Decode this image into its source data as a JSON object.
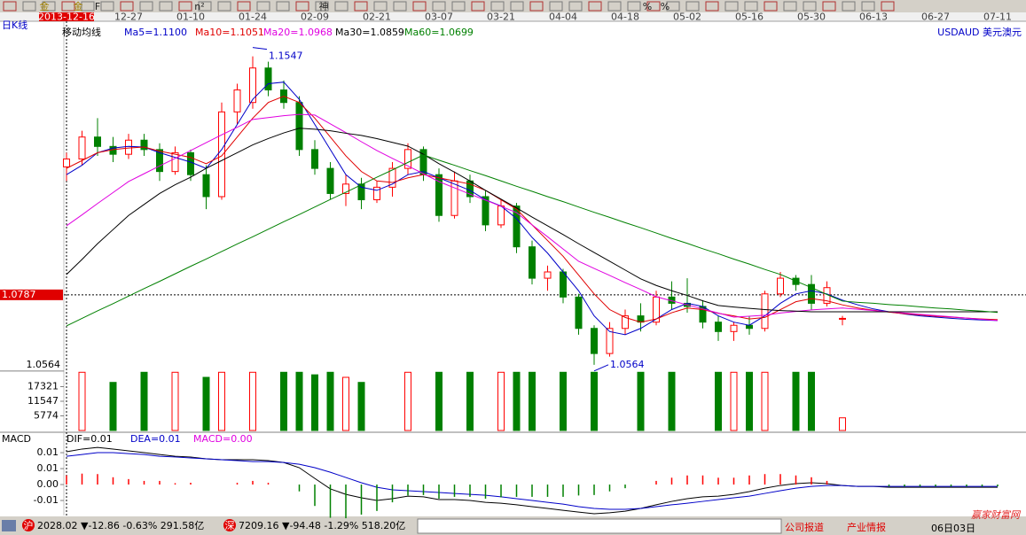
{
  "window": {
    "period": "日K线",
    "toolbar": [
      "金",
      "金",
      "F",
      "n²",
      "神",
      "%",
      "%"
    ]
  },
  "chart_data": [
    {
      "type": "candlestick",
      "title": "USDAUD 美元澳元",
      "legend_title": "移动均线",
      "categories": [
        "2013-12-16",
        null,
        null,
        null,
        "12-27",
        null,
        null,
        null,
        "01-10",
        null,
        null,
        null,
        "01-24",
        null,
        null,
        null,
        "02-09",
        null,
        null,
        null,
        "02-21",
        null,
        null,
        null,
        "03-07",
        null,
        null,
        null,
        "03-21",
        null,
        null,
        null,
        "04-04",
        null,
        null,
        null,
        "04-18",
        null,
        null,
        null,
        "05-02",
        null,
        null,
        null,
        "05-16",
        null,
        null,
        null,
        "05-30",
        null,
        null,
        null,
        "06-13",
        null,
        null,
        null,
        "06-27",
        null,
        null,
        null,
        "07-11"
      ],
      "open": [
        1.1195,
        1.122,
        1.129,
        1.126,
        1.1235,
        1.128,
        1.125,
        1.118,
        1.124,
        1.117,
        1.11,
        1.137,
        1.14,
        1.151,
        1.144,
        1.14,
        1.125,
        1.119,
        1.111,
        1.114,
        1.109,
        1.113,
        1.119,
        1.125,
        1.117,
        1.104,
        1.115,
        1.11,
        1.101,
        1.107,
        1.094,
        1.084,
        1.086,
        1.078,
        1.068,
        1.06,
        1.068,
        1.072,
        1.07,
        1.078,
        1.076,
        1.075,
        1.07,
        1.067,
        1.069,
        1.068,
        1.079,
        1.084,
        1.082,
        1.076,
        1.071,
        null,
        null,
        null,
        null,
        null,
        null,
        null,
        null,
        null,
        null
      ],
      "high": [
        1.124,
        1.131,
        1.135,
        1.129,
        1.13,
        1.13,
        1.127,
        1.126,
        1.125,
        1.12,
        1.14,
        1.146,
        1.1547,
        1.153,
        1.147,
        1.142,
        1.128,
        1.121,
        1.117,
        1.116,
        1.115,
        1.121,
        1.127,
        1.126,
        1.119,
        1.118,
        1.117,
        1.112,
        1.109,
        1.108,
        1.096,
        1.088,
        1.087,
        1.079,
        1.069,
        1.07,
        1.074,
        1.076,
        1.08,
        1.083,
        1.084,
        1.077,
        1.072,
        1.07,
        1.072,
        1.08,
        1.086,
        1.085,
        1.085,
        1.083,
        1.072,
        null,
        null,
        null,
        null,
        null,
        null,
        null,
        null,
        null,
        null
      ],
      "low": [
        1.115,
        1.12,
        1.123,
        1.121,
        1.122,
        1.123,
        1.115,
        1.117,
        1.115,
        1.106,
        1.109,
        1.133,
        1.138,
        1.142,
        1.138,
        1.123,
        1.117,
        1.109,
        1.107,
        1.106,
        1.108,
        1.11,
        1.117,
        1.115,
        1.102,
        1.103,
        1.108,
        1.099,
        1.1,
        1.092,
        1.082,
        1.08,
        1.076,
        1.066,
        1.0564,
        1.059,
        1.066,
        1.067,
        1.069,
        1.074,
        1.073,
        1.068,
        1.064,
        1.064,
        1.066,
        1.067,
        1.078,
        1.08,
        1.074,
        1.075,
        1.069,
        null,
        null,
        null,
        null,
        null,
        null,
        null,
        null,
        null,
        null
      ],
      "close": [
        1.122,
        1.129,
        1.126,
        1.1235,
        1.128,
        1.125,
        1.118,
        1.124,
        1.117,
        1.11,
        1.137,
        1.144,
        1.151,
        1.144,
        1.14,
        1.125,
        1.119,
        1.111,
        1.114,
        1.109,
        1.113,
        1.119,
        1.125,
        1.117,
        1.104,
        1.115,
        1.11,
        1.101,
        1.107,
        1.094,
        1.084,
        1.086,
        1.078,
        1.068,
        1.06,
        1.068,
        1.072,
        1.07,
        1.078,
        1.076,
        1.075,
        1.07,
        1.067,
        1.069,
        1.068,
        1.079,
        1.084,
        1.082,
        1.076,
        1.081,
        1.0712,
        null,
        null,
        null,
        null,
        null,
        null,
        null,
        null,
        null,
        null
      ],
      "up_color": "#ff0000",
      "down_color": "#008000",
      "series": [
        {
          "name": "Ma5=1.1100",
          "color": "#0000c8",
          "values": [
            1.117,
            1.12,
            1.124,
            1.1255,
            1.126,
            1.1258,
            1.124,
            1.1225,
            1.121,
            1.119,
            1.125,
            1.133,
            1.141,
            1.146,
            1.1465,
            1.141,
            1.133,
            1.125,
            1.117,
            1.113,
            1.112,
            1.114,
            1.117,
            1.118,
            1.116,
            1.114,
            1.112,
            1.109,
            1.107,
            1.103,
            1.097,
            1.092,
            1.086,
            1.08,
            1.072,
            1.067,
            1.066,
            1.068,
            1.071,
            1.074,
            1.076,
            1.075,
            1.072,
            1.07,
            1.069,
            1.072,
            1.076,
            1.079,
            1.08,
            1.079,
            1.077,
            1.0755,
            1.0742,
            1.0733,
            1.0726,
            1.072,
            1.0716,
            1.0712,
            1.0709,
            1.0707,
            1.0705
          ]
        },
        {
          "name": "Ma10=1.1051",
          "color": "#e00000",
          "values": [
            1.119,
            1.1215,
            1.124,
            1.125,
            1.1255,
            1.1258,
            1.1245,
            1.1235,
            1.1225,
            1.1205,
            1.123,
            1.129,
            1.135,
            1.14,
            1.142,
            1.14,
            1.135,
            1.129,
            1.123,
            1.118,
            1.115,
            1.1145,
            1.116,
            1.117,
            1.116,
            1.115,
            1.114,
            1.112,
            1.109,
            1.106,
            1.101,
            1.096,
            1.091,
            1.085,
            1.079,
            1.074,
            1.0715,
            1.07,
            1.071,
            1.073,
            1.0745,
            1.074,
            1.0728,
            1.072,
            1.071,
            1.0715,
            1.074,
            1.0765,
            1.0775,
            1.0768,
            1.0755,
            1.0745,
            1.0738,
            1.0732,
            1.0727,
            1.0723,
            1.0719,
            1.0716,
            1.0713,
            1.071,
            1.0708
          ]
        },
        {
          "name": "Ma20=1.0968",
          "color": "#e000e0",
          "values": [
            1.1007,
            1.1042,
            1.1078,
            1.1113,
            1.1148,
            1.1173,
            1.1198,
            1.1222,
            1.1247,
            1.1272,
            1.1297,
            1.1321,
            1.1346,
            1.1352,
            1.1358,
            1.1362,
            1.136,
            1.1332,
            1.1304,
            1.1275,
            1.1247,
            1.1222,
            1.1198,
            1.1173,
            1.1148,
            1.1128,
            1.1108,
            1.1089,
            1.1069,
            1.1049,
            1.101,
            1.0972,
            1.0933,
            1.0894,
            1.0871,
            1.0849,
            1.0826,
            1.0804,
            1.0781,
            1.0768,
            1.0755,
            1.0742,
            1.0729,
            1.0716,
            1.0719,
            1.0722,
            1.0729,
            1.0734,
            1.0739,
            1.0742,
            1.0745,
            1.0741,
            1.0737,
            1.0733,
            1.0729,
            1.0725,
            1.0721,
            1.0717,
            1.0713,
            1.0709,
            1.0705
          ]
        },
        {
          "name": "Ma30=1.0859",
          "color": "#000000",
          "values": [
            1.0852,
            1.09,
            1.095,
            1.0995,
            1.104,
            1.1075,
            1.111,
            1.1138,
            1.1162,
            1.119,
            1.1215,
            1.124,
            1.1265,
            1.1285,
            1.1303,
            1.1318,
            1.1315,
            1.131,
            1.1302,
            1.1295,
            1.1285,
            1.1273,
            1.1261,
            1.1235,
            1.1205,
            1.1178,
            1.115,
            1.112,
            1.1092,
            1.1064,
            1.1035,
            1.1007,
            1.0979,
            1.095,
            1.0922,
            1.0894,
            1.0866,
            1.0838,
            1.0817,
            1.08,
            1.0785,
            1.0768,
            1.0753,
            1.0748,
            1.0744,
            1.074,
            1.0737,
            1.0735,
            1.0733,
            1.0733,
            1.0733,
            1.0733,
            1.0733,
            1.0733,
            1.0733,
            1.0733,
            1.0733,
            1.0733,
            1.0733,
            1.0733,
            1.0733
          ]
        },
        {
          "name": "Ma60=1.0699",
          "color": "#008000",
          "values": [
            1.0688,
            1.0712,
            1.0736,
            1.0759,
            1.0783,
            1.0807,
            1.083,
            1.0854,
            1.0878,
            1.0901,
            1.0925,
            1.0949,
            1.0972,
            1.0996,
            1.102,
            1.1043,
            1.1067,
            1.1091,
            1.1114,
            1.1138,
            1.1162,
            1.1185,
            1.1209,
            1.1233,
            1.1216,
            1.12,
            1.1183,
            1.1167,
            1.115,
            1.1133,
            1.1117,
            1.11,
            1.1084,
            1.1067,
            1.105,
            1.1034,
            1.1017,
            1.1001,
            1.0984,
            1.0967,
            1.0951,
            1.0934,
            1.0918,
            1.0901,
            1.0885,
            1.0868,
            1.0852,
            1.0831,
            1.081,
            1.0788,
            1.0767,
            1.0763,
            1.076,
            1.0756,
            1.0753,
            1.0749,
            1.0745,
            1.0742,
            1.0738,
            1.0735,
            1.0731
          ]
        }
      ],
      "ylim": [
        1.0541,
        1.1642
      ],
      "yticks": [
        1.0564
      ],
      "cursor_price": 1.0787
    },
    {
      "type": "bar",
      "values": [
        0,
        23000,
        0,
        19000,
        0,
        23000,
        0,
        23000,
        0,
        21000,
        23000,
        0,
        23000,
        0,
        23000,
        23000,
        22000,
        23000,
        21000,
        19000,
        0,
        0,
        23000,
        0,
        23000,
        0,
        23000,
        0,
        23000,
        23000,
        23000,
        0,
        23000,
        0,
        23000,
        0,
        0,
        23000,
        0,
        23000,
        0,
        0,
        23000,
        23000,
        23000,
        23000,
        0,
        23000,
        23000,
        0,
        5000,
        null,
        null,
        null,
        null,
        null,
        null,
        null,
        null,
        null,
        null
      ],
      "ylim": [
        0,
        23100
      ],
      "yticks": [
        5774,
        11547,
        17321
      ]
    },
    {
      "type": "line",
      "title": "MACD",
      "series": [
        {
          "name": "DIF=0.01",
          "color": "#000000",
          "values": [
            0.0144,
            0.0156,
            0.0163,
            0.0156,
            0.0148,
            0.014,
            0.0132,
            0.0124,
            0.0121,
            0.0113,
            0.0109,
            0.0109,
            0.0109,
            0.0105,
            0.0097,
            0.0074,
            0.0027,
            -0.0019,
            -0.0043,
            -0.0058,
            -0.007,
            -0.0062,
            -0.0051,
            -0.0054,
            -0.0066,
            -0.0066,
            -0.007,
            -0.0078,
            -0.0082,
            -0.0089,
            -0.0097,
            -0.0105,
            -0.0113,
            -0.0121,
            -0.0128,
            -0.0124,
            -0.0117,
            -0.0105,
            -0.0089,
            -0.0074,
            -0.0062,
            -0.0054,
            -0.0051,
            -0.0043,
            -0.0031,
            -0.0016,
            -0.0004,
            0.0004,
            0.0008,
            0.0004,
            -0.0004,
            -0.0008,
            -0.0008,
            -0.0012,
            -0.0012,
            -0.0012,
            -0.0012,
            -0.0012,
            -0.0012,
            -0.0012,
            -0.0012
          ]
        },
        {
          "name": "DEA=0.01",
          "color": "#0000c8",
          "values": [
            0.0124,
            0.0132,
            0.014,
            0.014,
            0.0136,
            0.0132,
            0.0124,
            0.0121,
            0.0117,
            0.0113,
            0.0109,
            0.0105,
            0.0101,
            0.0101,
            0.0097,
            0.0089,
            0.0074,
            0.0054,
            0.0031,
            0.0008,
            -0.0012,
            -0.0023,
            -0.0027,
            -0.0031,
            -0.0035,
            -0.0039,
            -0.0043,
            -0.0047,
            -0.0054,
            -0.0062,
            -0.007,
            -0.0078,
            -0.0086,
            -0.0097,
            -0.0105,
            -0.0109,
            -0.0109,
            -0.0105,
            -0.0097,
            -0.0089,
            -0.0082,
            -0.0074,
            -0.0066,
            -0.0058,
            -0.0051,
            -0.0039,
            -0.0027,
            -0.0016,
            -0.0008,
            -0.0004,
            -0.0004,
            -0.0008,
            -0.0008,
            -0.0008,
            -0.0008,
            -0.0008,
            -0.0008,
            -0.0008,
            -0.0008,
            -0.0008,
            -0.0008
          ]
        },
        {
          "name": "MACD=0.00",
          "color": "#e000e0",
          "style": "bar",
          "up_color": "#ff0000",
          "down_color": "#008000",
          "values": [
            0.004,
            0.0048,
            0.0046,
            0.0032,
            0.0024,
            0.0016,
            0.0016,
            0.0006,
            0.0008,
            0.0,
            0.0,
            0.0008,
            0.0016,
            0.0008,
            0.0,
            -0.003,
            -0.0094,
            -0.0146,
            -0.0148,
            -0.0132,
            -0.0116,
            -0.0078,
            -0.0048,
            -0.0046,
            -0.0062,
            -0.0054,
            -0.0054,
            -0.0062,
            -0.0056,
            -0.0054,
            -0.0054,
            -0.0054,
            -0.0054,
            -0.0048,
            -0.0046,
            -0.003,
            -0.0016,
            0.0,
            0.0016,
            0.003,
            0.004,
            0.004,
            0.003,
            0.003,
            0.004,
            0.0046,
            0.0046,
            0.004,
            0.0032,
            0.0016,
            0.0,
            0.0,
            0.0,
            -0.0008,
            -0.0008,
            -0.0008,
            -0.0008,
            -0.0008,
            -0.0008,
            -0.0008,
            -0.0008
          ]
        }
      ],
      "ylim": [
        -0.0136,
        0.0183
      ],
      "yticks": [
        {
          "value": -0.007,
          "label": "-0.01"
        },
        0,
        {
          "value": 0.007,
          "label": "0.01"
        },
        {
          "value": 0.014,
          "label": "0.01"
        }
      ],
      "zero_tick_label": "0.00"
    }
  ],
  "status_bar": {
    "sh_label": "沪",
    "sh_text": "2028.02 ▼-12.86 -0.63% 291.58亿",
    "sz_label": "深",
    "sz_text": "7209.16 ▼-94.48 -1.29% 518.20亿",
    "links": [
      "公司报道",
      "产业情报"
    ],
    "date": "06日03日",
    "watermark": "赢家财富网"
  }
}
